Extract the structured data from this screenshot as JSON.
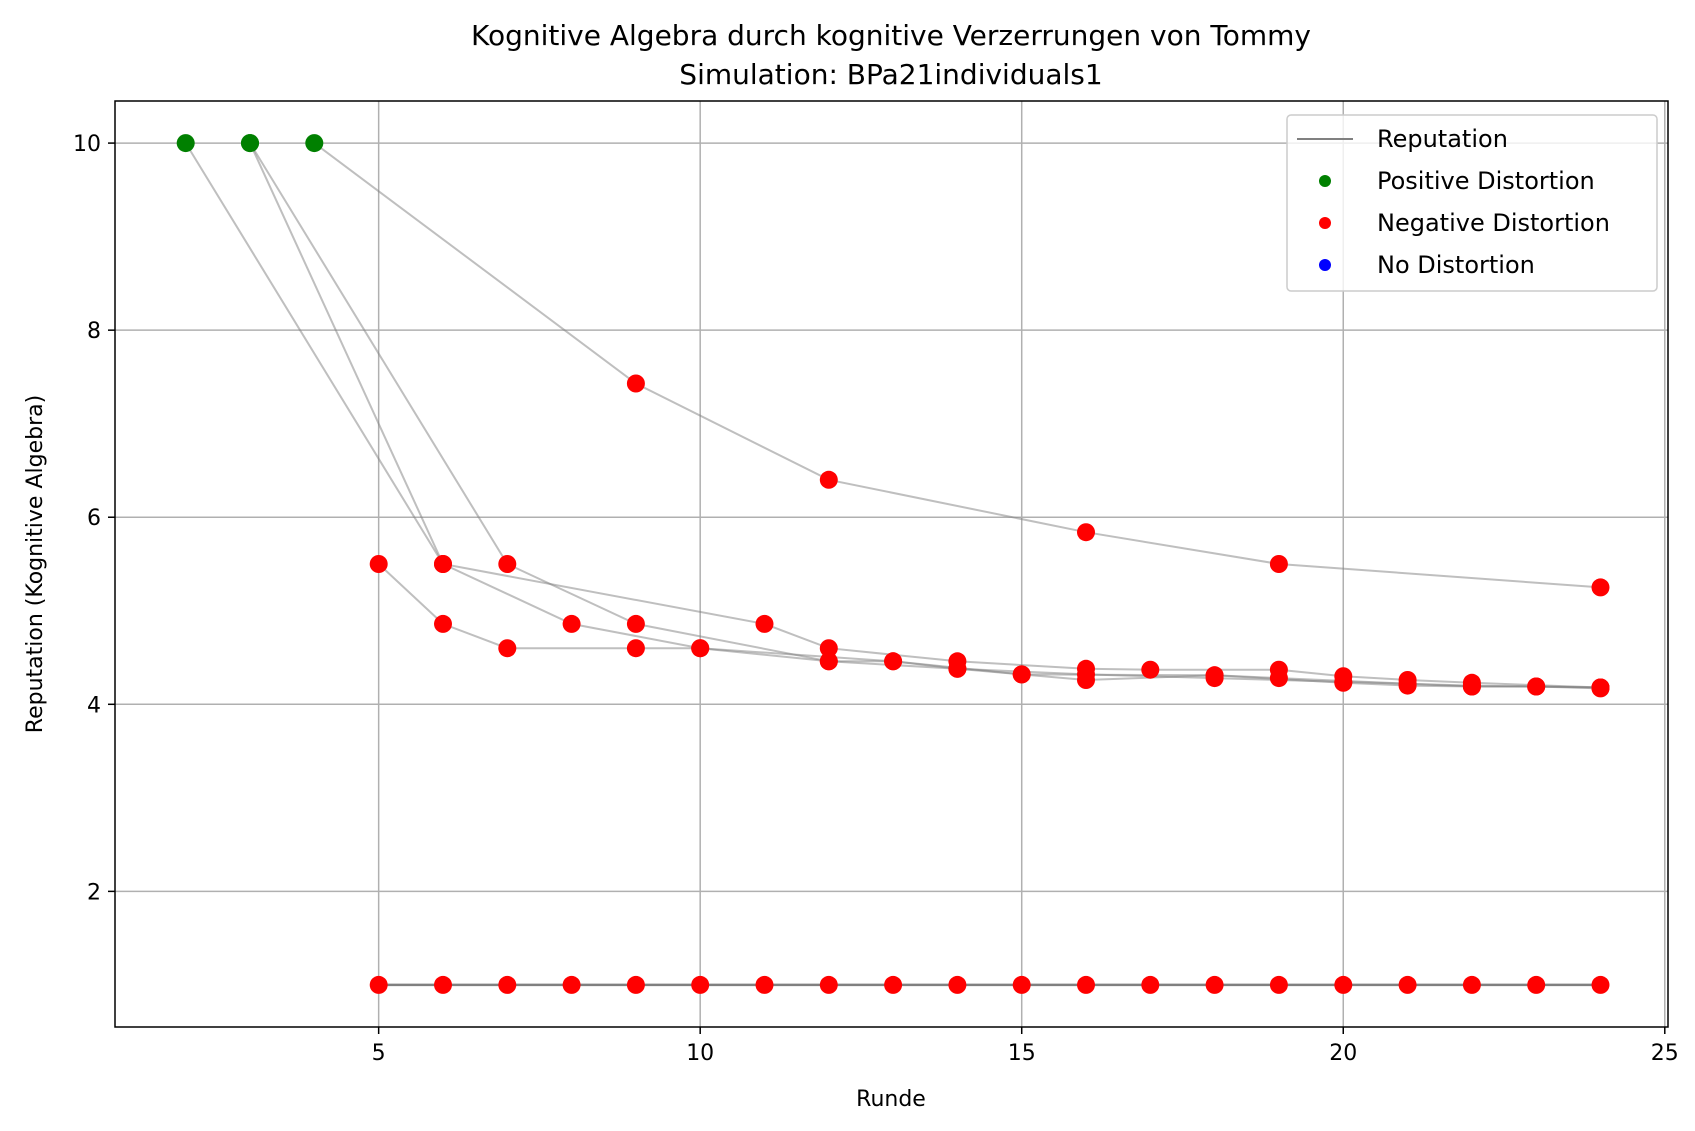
{
  "chart_data": {
    "type": "scatter",
    "title": "Kognitive Algebra durch kognitive Verzerrungen von Tommy",
    "subtitle": "Simulation: BPa21individuals1",
    "xlabel": "Runde",
    "ylabel": "Reputation (Kognitive Algebra)",
    "xlim": [
      0.9,
      25.05
    ],
    "ylim": [
      0.55,
      10.45
    ],
    "x_ticks": [
      5,
      10,
      15,
      20,
      25
    ],
    "y_ticks": [
      2,
      4,
      6,
      8,
      10
    ],
    "grid": true,
    "legend_position": "top-right",
    "legend": [
      {
        "label": "Reputation",
        "kind": "line",
        "color": "#808080"
      },
      {
        "label": "Positive Distortion",
        "kind": "marker",
        "color": "#008000"
      },
      {
        "label": "Negative Distortion",
        "kind": "marker",
        "color": "#ff0000"
      },
      {
        "label": "No Distortion",
        "kind": "marker",
        "color": "#0000ff"
      }
    ],
    "colors": {
      "positive": "#008000",
      "negative": "#ff0000",
      "none": "#0000ff",
      "line": "#808080"
    },
    "series": [
      {
        "points": [
          [
            4,
            10
          ],
          [
            9,
            7.43
          ],
          [
            12,
            6.4
          ],
          [
            16,
            5.84
          ],
          [
            19,
            5.5
          ],
          [
            24,
            5.25
          ]
        ],
        "distortion": [
          "positive",
          "negative",
          "negative",
          "negative",
          "negative",
          "negative"
        ]
      },
      {
        "points": [
          [
            3,
            10
          ],
          [
            6,
            5.5
          ],
          [
            8,
            4.86
          ],
          [
            10,
            4.6
          ],
          [
            12,
            4.46
          ],
          [
            14,
            4.38
          ],
          [
            16,
            4.32
          ],
          [
            18,
            4.28
          ],
          [
            20,
            4.24
          ],
          [
            22,
            4.2
          ],
          [
            24,
            4.18
          ]
        ],
        "distortion": [
          "positive",
          "negative",
          "negative",
          "negative",
          "negative",
          "negative",
          "negative",
          "negative",
          "negative",
          "negative",
          "negative"
        ]
      },
      {
        "points": [
          [
            3,
            10
          ],
          [
            7,
            5.5
          ],
          [
            9,
            4.86
          ],
          [
            12,
            4.46
          ],
          [
            13,
            4.46
          ],
          [
            15,
            4.32
          ],
          [
            18,
            4.31
          ],
          [
            19,
            4.28
          ],
          [
            21,
            4.22
          ],
          [
            22,
            4.19
          ],
          [
            23,
            4.19
          ],
          [
            24,
            4.18
          ]
        ],
        "distortion": [
          "positive",
          "negative",
          "negative",
          "negative",
          "negative",
          "negative",
          "negative",
          "negative",
          "negative",
          "negative",
          "negative",
          "negative"
        ]
      },
      {
        "points": [
          [
            2,
            10
          ],
          [
            6,
            5.5
          ],
          [
            11,
            4.86
          ],
          [
            12,
            4.6
          ],
          [
            14,
            4.46
          ],
          [
            16,
            4.38
          ],
          [
            17,
            4.37
          ],
          [
            19,
            4.37
          ],
          [
            20,
            4.3
          ],
          [
            21,
            4.26
          ],
          [
            22,
            4.23
          ],
          [
            24,
            4.18
          ]
        ],
        "distortion": [
          "positive",
          "negative",
          "negative",
          "negative",
          "negative",
          "negative",
          "negative",
          "negative",
          "negative",
          "negative",
          "negative",
          "negative"
        ]
      },
      {
        "points": [
          [
            5,
            5.5
          ],
          [
            6,
            4.86
          ],
          [
            7,
            4.6
          ],
          [
            9,
            4.6
          ],
          [
            10,
            4.6
          ],
          [
            13,
            4.46
          ],
          [
            14,
            4.38
          ],
          [
            15,
            4.32
          ],
          [
            16,
            4.26
          ],
          [
            18,
            4.31
          ],
          [
            20,
            4.23
          ],
          [
            21,
            4.2
          ],
          [
            22,
            4.19
          ],
          [
            23,
            4.19
          ],
          [
            24,
            4.17
          ]
        ],
        "distortion": [
          "negative",
          "negative",
          "negative",
          "negative",
          "negative",
          "negative",
          "negative",
          "negative",
          "negative",
          "negative",
          "negative",
          "negative",
          "negative",
          "negative",
          "negative"
        ]
      },
      {
        "points": [
          [
            5,
            1
          ],
          [
            6,
            1
          ],
          [
            7,
            1
          ],
          [
            8,
            1
          ],
          [
            9,
            1
          ],
          [
            10,
            1
          ],
          [
            11,
            1
          ],
          [
            12,
            1
          ],
          [
            13,
            1
          ],
          [
            14,
            1
          ],
          [
            15,
            1
          ],
          [
            16,
            1
          ],
          [
            17,
            1
          ],
          [
            18,
            1
          ],
          [
            19,
            1
          ],
          [
            20,
            1
          ],
          [
            21,
            1
          ],
          [
            22,
            1
          ],
          [
            23,
            1
          ],
          [
            24,
            1
          ]
        ],
        "distortion": [
          "negative",
          "negative",
          "negative",
          "negative",
          "negative",
          "negative",
          "negative",
          "negative",
          "negative",
          "negative",
          "negative",
          "negative",
          "negative",
          "negative",
          "negative",
          "negative",
          "negative",
          "negative",
          "negative",
          "negative"
        ],
        "dark_line": true
      }
    ]
  }
}
